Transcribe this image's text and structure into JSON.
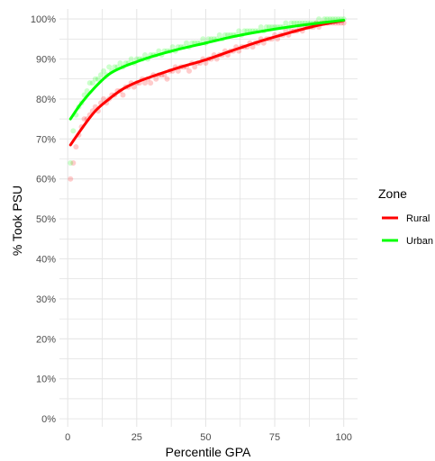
{
  "chart_data": {
    "type": "scatter",
    "xlabel": "Percentile GPA",
    "ylabel": "% Took PSU",
    "xlim": [
      -3,
      105
    ],
    "ylim": [
      -2,
      102.5
    ],
    "xticks": [
      0,
      25,
      50,
      75,
      100
    ],
    "xtick_labels": [
      "0",
      "25",
      "50",
      "75",
      "100"
    ],
    "yticks": [
      0,
      10,
      20,
      30,
      40,
      50,
      60,
      70,
      80,
      90,
      100
    ],
    "ytick_labels": [
      "0%",
      "10%",
      "20%",
      "30%",
      "40%",
      "50%",
      "60%",
      "70%",
      "80%",
      "90%",
      "100%"
    ],
    "grid": true,
    "legend": {
      "title": "Zone",
      "position": "right",
      "entries": [
        "Rural",
        "Urban"
      ]
    },
    "series": [
      {
        "name": "Rural",
        "color": "#ff0000",
        "points": [
          [
            1,
            60
          ],
          [
            2,
            64
          ],
          [
            3,
            68
          ],
          [
            4,
            71
          ],
          [
            5,
            73
          ],
          [
            6,
            75
          ],
          [
            7,
            75
          ],
          [
            8,
            76
          ],
          [
            9,
            77
          ],
          [
            10,
            78
          ],
          [
            11,
            77
          ],
          [
            12,
            79
          ],
          [
            13,
            80
          ],
          [
            14,
            79
          ],
          [
            15,
            80
          ],
          [
            16,
            81
          ],
          [
            17,
            81
          ],
          [
            18,
            82
          ],
          [
            19,
            82
          ],
          [
            20,
            81
          ],
          [
            21,
            83
          ],
          [
            22,
            83
          ],
          [
            23,
            84
          ],
          [
            24,
            83
          ],
          [
            25,
            84
          ],
          [
            26,
            84
          ],
          [
            27,
            85
          ],
          [
            28,
            84
          ],
          [
            29,
            85
          ],
          [
            30,
            84
          ],
          [
            31,
            86
          ],
          [
            32,
            85
          ],
          [
            33,
            86
          ],
          [
            34,
            86
          ],
          [
            35,
            86
          ],
          [
            36,
            85
          ],
          [
            37,
            87
          ],
          [
            38,
            87
          ],
          [
            39,
            88
          ],
          [
            40,
            87
          ],
          [
            41,
            88
          ],
          [
            42,
            88
          ],
          [
            43,
            88
          ],
          [
            44,
            87
          ],
          [
            45,
            89
          ],
          [
            46,
            88
          ],
          [
            47,
            89
          ],
          [
            48,
            89
          ],
          [
            49,
            90
          ],
          [
            50,
            89
          ],
          [
            51,
            90
          ],
          [
            52,
            90
          ],
          [
            53,
            91
          ],
          [
            54,
            90
          ],
          [
            55,
            91
          ],
          [
            56,
            91
          ],
          [
            57,
            92
          ],
          [
            58,
            91
          ],
          [
            59,
            92
          ],
          [
            60,
            92
          ],
          [
            61,
            93
          ],
          [
            62,
            92
          ],
          [
            63,
            93
          ],
          [
            64,
            93
          ],
          [
            65,
            93
          ],
          [
            66,
            94
          ],
          [
            67,
            93
          ],
          [
            68,
            94
          ],
          [
            69,
            94
          ],
          [
            70,
            95
          ],
          [
            71,
            94
          ],
          [
            72,
            95
          ],
          [
            73,
            95
          ],
          [
            74,
            95
          ],
          [
            75,
            96
          ],
          [
            76,
            95
          ],
          [
            77,
            96
          ],
          [
            78,
            96
          ],
          [
            79,
            97
          ],
          [
            80,
            96
          ],
          [
            81,
            97
          ],
          [
            82,
            97
          ],
          [
            83,
            97
          ],
          [
            84,
            98
          ],
          [
            85,
            97
          ],
          [
            86,
            98
          ],
          [
            87,
            98
          ],
          [
            88,
            98
          ],
          [
            89,
            98
          ],
          [
            90,
            99
          ],
          [
            91,
            98
          ],
          [
            92,
            99
          ],
          [
            93,
            99
          ],
          [
            94,
            99
          ],
          [
            95,
            99
          ],
          [
            96,
            99
          ],
          [
            97,
            99
          ],
          [
            98,
            99
          ],
          [
            99,
            99
          ],
          [
            100,
            99
          ]
        ],
        "trend": [
          [
            1,
            68.5
          ],
          [
            5,
            72.5
          ],
          [
            10,
            77
          ],
          [
            15,
            80
          ],
          [
            20,
            82.5
          ],
          [
            25,
            84.2
          ],
          [
            30,
            85.5
          ],
          [
            40,
            87.8
          ],
          [
            50,
            89.8
          ],
          [
            60,
            92.2
          ],
          [
            70,
            94.5
          ],
          [
            80,
            96.5
          ],
          [
            90,
            98.3
          ],
          [
            100,
            99.6
          ]
        ]
      },
      {
        "name": "Urban",
        "color": "#00ff00",
        "points": [
          [
            1,
            64
          ],
          [
            2,
            72
          ],
          [
            3,
            76
          ],
          [
            4,
            78
          ],
          [
            5,
            79
          ],
          [
            6,
            81
          ],
          [
            7,
            82
          ],
          [
            8,
            84
          ],
          [
            9,
            84
          ],
          [
            10,
            85
          ],
          [
            11,
            85
          ],
          [
            12,
            86
          ],
          [
            13,
            87
          ],
          [
            14,
            86
          ],
          [
            15,
            88
          ],
          [
            16,
            87
          ],
          [
            17,
            88
          ],
          [
            18,
            88
          ],
          [
            19,
            89
          ],
          [
            20,
            88
          ],
          [
            21,
            89
          ],
          [
            22,
            89
          ],
          [
            23,
            90
          ],
          [
            24,
            89
          ],
          [
            25,
            90
          ],
          [
            26,
            90
          ],
          [
            27,
            90
          ],
          [
            28,
            91
          ],
          [
            29,
            90
          ],
          [
            30,
            91
          ],
          [
            31,
            91
          ],
          [
            32,
            91
          ],
          [
            33,
            92
          ],
          [
            34,
            91
          ],
          [
            35,
            92
          ],
          [
            36,
            92
          ],
          [
            37,
            92
          ],
          [
            38,
            93
          ],
          [
            39,
            92
          ],
          [
            40,
            93
          ],
          [
            41,
            93
          ],
          [
            42,
            93
          ],
          [
            43,
            94
          ],
          [
            44,
            93
          ],
          [
            45,
            94
          ],
          [
            46,
            94
          ],
          [
            47,
            94
          ],
          [
            48,
            94
          ],
          [
            49,
            95
          ],
          [
            50,
            94
          ],
          [
            51,
            95
          ],
          [
            52,
            95
          ],
          [
            53,
            95
          ],
          [
            54,
            95
          ],
          [
            55,
            96
          ],
          [
            56,
            95
          ],
          [
            57,
            96
          ],
          [
            58,
            96
          ],
          [
            59,
            96
          ],
          [
            60,
            96
          ],
          [
            61,
            96
          ],
          [
            62,
            97
          ],
          [
            63,
            96
          ],
          [
            64,
            97
          ],
          [
            65,
            97
          ],
          [
            66,
            97
          ],
          [
            67,
            97
          ],
          [
            68,
            97
          ],
          [
            69,
            97
          ],
          [
            70,
            98
          ],
          [
            71,
            97
          ],
          [
            72,
            98
          ],
          [
            73,
            98
          ],
          [
            74,
            98
          ],
          [
            75,
            98
          ],
          [
            76,
            98
          ],
          [
            77,
            98
          ],
          [
            78,
            98
          ],
          [
            79,
            99
          ],
          [
            80,
            98
          ],
          [
            81,
            99
          ],
          [
            82,
            99
          ],
          [
            83,
            99
          ],
          [
            84,
            99
          ],
          [
            85,
            99
          ],
          [
            86,
            99
          ],
          [
            87,
            99
          ],
          [
            88,
            99
          ],
          [
            89,
            99
          ],
          [
            90,
            99
          ],
          [
            91,
            100
          ],
          [
            92,
            99
          ],
          [
            93,
            100
          ],
          [
            94,
            100
          ],
          [
            95,
            100
          ],
          [
            96,
            100
          ],
          [
            97,
            100
          ],
          [
            98,
            100
          ],
          [
            99,
            100
          ],
          [
            100,
            100
          ]
        ],
        "trend": [
          [
            1,
            75
          ],
          [
            5,
            79
          ],
          [
            10,
            83
          ],
          [
            15,
            86.2
          ],
          [
            20,
            88
          ],
          [
            25,
            89.3
          ],
          [
            30,
            90.5
          ],
          [
            40,
            92.4
          ],
          [
            50,
            94
          ],
          [
            60,
            95.6
          ],
          [
            70,
            96.9
          ],
          [
            80,
            98
          ],
          [
            90,
            98.9
          ],
          [
            100,
            99.7
          ]
        ]
      }
    ]
  }
}
